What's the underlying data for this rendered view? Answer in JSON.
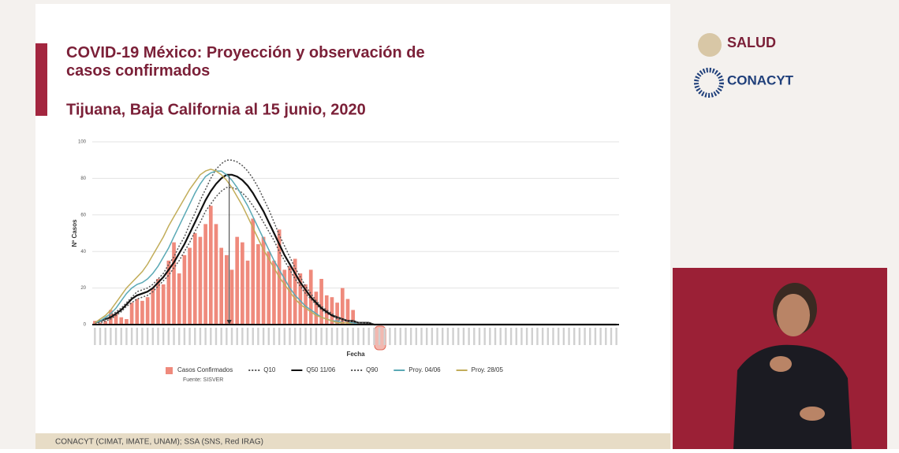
{
  "header": {
    "title": "COVID-19 México: Proyección y observación de casos confirmados",
    "subtitle": "Tijuana, Baja California al 15 junio, 2020",
    "logos": [
      "SALUD",
      "CONACYT"
    ]
  },
  "footer": "CONACYT (CIMAT, IMATE, UNAM);  SSA (SNS, Red IRAG)",
  "chart_data": {
    "type": "bar",
    "y_label": "Nº Casos",
    "x_label": "Fecha",
    "source": "Fuente: SISVER",
    "ylim": [
      0,
      100
    ],
    "yticks": [
      0,
      20,
      40,
      60,
      80,
      100
    ],
    "grid": true,
    "legend": "bottom",
    "categories": [
      null,
      null,
      null,
      null,
      null,
      null,
      null,
      null,
      null,
      null,
      null,
      null,
      null,
      null,
      null,
      null,
      null,
      null,
      null,
      null,
      null,
      null,
      null,
      null,
      null,
      null,
      null,
      null,
      null,
      null,
      null,
      null,
      null,
      null,
      null,
      null,
      null,
      null,
      null,
      null,
      null,
      null,
      null,
      null,
      null,
      null,
      null,
      null,
      null,
      null,
      null,
      null,
      null,
      null,
      null,
      null,
      null,
      null,
      null,
      null,
      null,
      null,
      null,
      null,
      null,
      null,
      null,
      null,
      null,
      null,
      null,
      null,
      null,
      null,
      null,
      null,
      null,
      null,
      null,
      null,
      null,
      null,
      null,
      null,
      null,
      null,
      null,
      null,
      null,
      null,
      null,
      null,
      null,
      null,
      null,
      null,
      null,
      null,
      null,
      null
    ],
    "series": [
      {
        "name": "Casos Confirmados",
        "type": "bar",
        "color": "#ef8a7c",
        "values": [
          2,
          1,
          2,
          8,
          6,
          4,
          3,
          12,
          14,
          13,
          15,
          20,
          25,
          22,
          35,
          45,
          28,
          38,
          42,
          50,
          48,
          55,
          65,
          55,
          42,
          38,
          30,
          48,
          45,
          35,
          58,
          44,
          48,
          40,
          35,
          52,
          30,
          32,
          36,
          28,
          22,
          30,
          18,
          25,
          16,
          15,
          12,
          20,
          14,
          8,
          null,
          null,
          null,
          null,
          null,
          null,
          null,
          null,
          null,
          null,
          null,
          null,
          null,
          null,
          null,
          null,
          null,
          null,
          null,
          null,
          null,
          null,
          null,
          null,
          null,
          null,
          null,
          null,
          null,
          null,
          null,
          null,
          null,
          null,
          null,
          null,
          null,
          null,
          null,
          null,
          null,
          null,
          null,
          null,
          null,
          null,
          null,
          null,
          null,
          null
        ]
      },
      {
        "name": "Q10",
        "type": "line",
        "dash": true,
        "color": "#555555",
        "values": [
          1,
          1,
          2,
          3,
          5,
          7,
          10,
          12,
          14,
          15,
          16,
          18,
          21,
          24,
          27,
          31,
          35,
          40,
          45,
          51,
          56,
          62,
          66,
          70,
          73,
          75,
          75,
          74,
          72,
          69,
          65,
          61,
          56,
          51,
          46,
          40,
          35,
          30,
          25,
          21,
          17,
          14,
          11,
          8,
          6,
          5,
          3,
          2,
          2,
          1,
          1,
          1,
          0,
          0,
          0,
          0,
          0,
          0,
          0,
          0,
          0,
          0,
          0,
          0,
          0,
          0,
          0,
          0,
          0,
          0,
          0,
          0,
          0,
          0,
          0,
          0,
          0,
          0,
          0,
          0,
          0,
          0,
          0,
          0,
          0,
          0,
          0,
          0,
          0,
          0,
          0,
          0,
          0,
          0,
          0,
          0,
          0,
          0,
          0,
          0
        ]
      },
      {
        "name": "Q50 11/06",
        "type": "line",
        "dash": false,
        "color": "#111111",
        "values": [
          1,
          2,
          3,
          4,
          6,
          8,
          11,
          14,
          16,
          17,
          18,
          20,
          23,
          26,
          30,
          34,
          39,
          44,
          50,
          56,
          62,
          68,
          73,
          77,
          80,
          82,
          82,
          81,
          79,
          76,
          72,
          67,
          62,
          56,
          50,
          44,
          38,
          33,
          28,
          23,
          19,
          15,
          12,
          9,
          7,
          5,
          4,
          3,
          2,
          2,
          1,
          1,
          1,
          0,
          0,
          0,
          0,
          0,
          0,
          0,
          0,
          0,
          0,
          0,
          0,
          0,
          0,
          0,
          0,
          0,
          0,
          0,
          0,
          0,
          0,
          0,
          0,
          0,
          0,
          0,
          0,
          0,
          0,
          0,
          0,
          0,
          0,
          0,
          0,
          0,
          0,
          0,
          0,
          0,
          0,
          0,
          0,
          0,
          0,
          0
        ]
      },
      {
        "name": "Q90",
        "type": "line",
        "dash": true,
        "color": "#555555",
        "values": [
          1,
          2,
          3,
          5,
          7,
          9,
          12,
          15,
          18,
          19,
          20,
          22,
          25,
          28,
          33,
          37,
          43,
          48,
          55,
          61,
          68,
          74,
          80,
          85,
          88,
          90,
          90,
          89,
          87,
          84,
          80,
          75,
          69,
          63,
          56,
          49,
          43,
          37,
          31,
          26,
          21,
          17,
          13,
          10,
          8,
          6,
          4,
          3,
          2,
          2,
          1,
          1,
          1,
          0,
          0,
          0,
          0,
          0,
          0,
          0,
          0,
          0,
          0,
          0,
          0,
          0,
          0,
          0,
          0,
          0,
          0,
          0,
          0,
          0,
          0,
          0,
          0,
          0,
          0,
          0,
          0,
          0,
          0,
          0,
          0,
          0,
          0,
          0,
          0,
          0,
          0,
          0,
          0,
          0,
          0,
          0,
          0,
          0,
          0,
          0
        ]
      },
      {
        "name": "Proy. 04/06",
        "type": "line",
        "dash": false,
        "color": "#5aa9b5",
        "values": [
          1,
          2,
          4,
          6,
          9,
          13,
          17,
          20,
          22,
          23,
          25,
          28,
          32,
          37,
          42,
          48,
          54,
          60,
          66,
          72,
          77,
          81,
          83,
          84,
          84,
          82,
          79,
          75,
          70,
          65,
          59,
          53,
          47,
          41,
          35,
          30,
          25,
          20,
          16,
          13,
          10,
          8,
          6,
          4,
          3,
          2,
          2,
          1,
          1,
          1,
          0,
          0,
          0,
          0,
          0,
          0,
          0,
          0,
          0,
          0,
          0,
          0,
          0,
          0,
          0,
          0,
          0,
          0,
          0,
          0,
          0,
          0,
          0,
          0,
          0,
          0,
          0,
          0,
          0,
          0,
          0,
          0,
          0,
          0,
          0,
          0,
          0,
          0,
          0,
          0,
          0,
          0,
          0,
          0,
          0,
          0,
          0,
          0,
          0,
          0
        ]
      },
      {
        "name": "Proy. 28/05",
        "type": "line",
        "dash": false,
        "color": "#c2ad5a",
        "values": [
          1,
          3,
          5,
          8,
          12,
          16,
          20,
          23,
          26,
          29,
          33,
          38,
          43,
          48,
          54,
          59,
          64,
          69,
          74,
          78,
          82,
          84,
          85,
          84,
          82,
          79,
          75,
          70,
          65,
          59,
          53,
          47,
          41,
          36,
          31,
          26,
          22,
          18,
          14,
          11,
          9,
          7,
          5,
          4,
          3,
          2,
          1,
          1,
          1,
          0,
          0,
          0,
          0,
          0,
          0,
          0,
          0,
          0,
          0,
          0,
          0,
          0,
          0,
          0,
          0,
          0,
          0,
          0,
          0,
          0,
          0,
          0,
          0,
          0,
          0,
          0,
          0,
          0,
          0,
          0,
          0,
          0,
          0,
          0,
          0,
          0,
          0,
          0,
          0,
          0,
          0,
          0,
          0,
          0,
          0,
          0,
          0,
          0,
          0,
          0
        ]
      }
    ]
  }
}
